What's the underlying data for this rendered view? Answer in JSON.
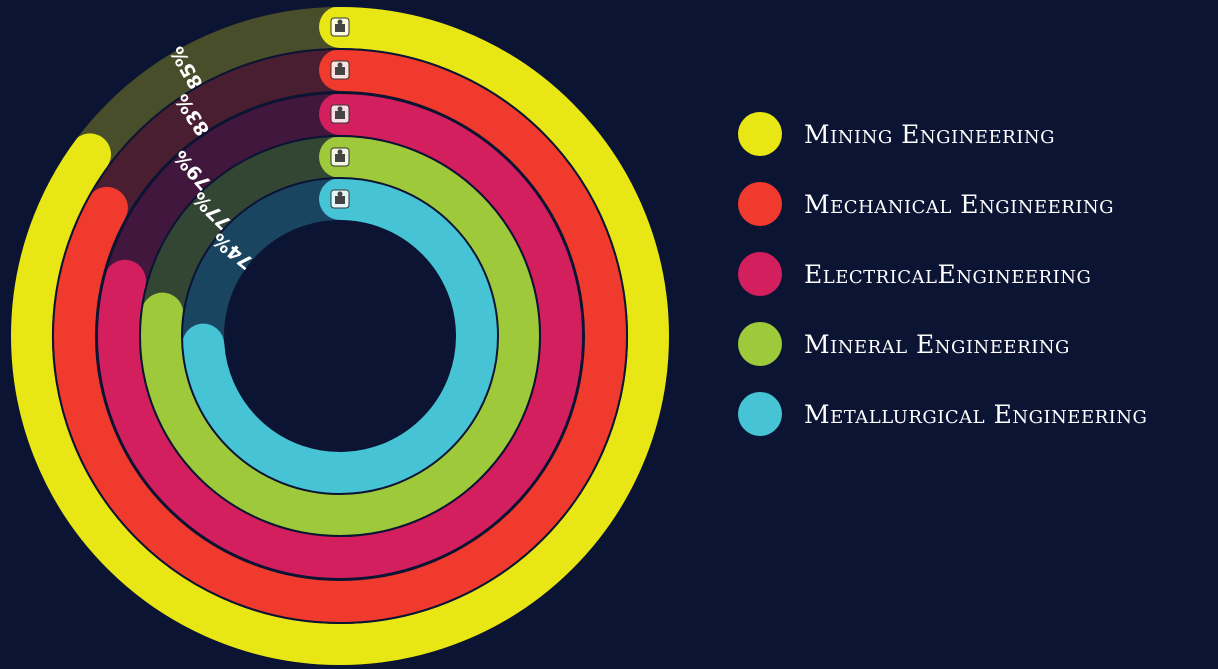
{
  "chart_data": {
    "type": "radial-bar",
    "title": "",
    "series": [
      {
        "name": "Mining Engineering",
        "value": 85,
        "color": "#e8e615",
        "icon": "mining-icon"
      },
      {
        "name": "Mechanical Engineering",
        "value": 83,
        "color": "#ef3a2d",
        "icon": "mechanical-icon"
      },
      {
        "name": "ElectricalEngineering",
        "value": 79,
        "color": "#d41f5e",
        "icon": "electrical-icon"
      },
      {
        "name": "Mineral Engineering",
        "value": 77,
        "color": "#9ec93a",
        "icon": "mineral-icon"
      },
      {
        "name": "Metallurgical Engineering",
        "value": 74,
        "color": "#46c4d6",
        "icon": "metallurgical-icon"
      }
    ],
    "value_labels": [
      "85%",
      "83%",
      "79%",
      "77%",
      "74%"
    ],
    "range": [
      0,
      100
    ],
    "legend_position": "right"
  },
  "colors": {
    "background": "#0b1433"
  }
}
